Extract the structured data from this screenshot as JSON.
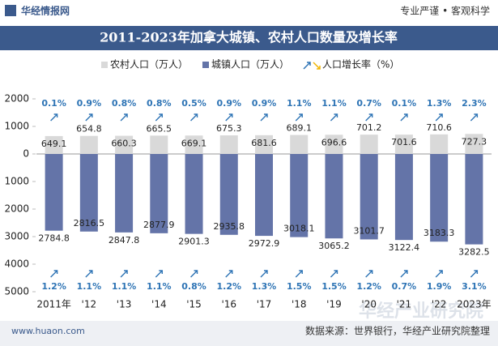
{
  "header": {
    "brand": "华经情报网",
    "slogan": "专业严谨 • 客观科学"
  },
  "footer": {
    "site": "www.huaon.com",
    "source": "数据来源：世界银行，华经产业研究院整理",
    "watermark": "华经产业研究院"
  },
  "chart_data": {
    "type": "bar",
    "title": "2011-2023年加拿大城镇、农村人口数量及增长率",
    "categories": [
      "2011年",
      "'12",
      "'13",
      "'14",
      "'15",
      "'16",
      "'17",
      "'18",
      "'19",
      "'20",
      "'21",
      "'22",
      "2023年"
    ],
    "series": [
      {
        "name": "农村人口（万人）",
        "color": "#d9d9d9",
        "values": [
          649.1,
          654.8,
          660.3,
          665.5,
          669.1,
          675.3,
          681.6,
          689.1,
          696.6,
          701.2,
          701.6,
          710.6,
          727.3
        ],
        "growth": [
          0.1,
          0.9,
          0.8,
          0.8,
          0.5,
          0.9,
          0.9,
          1.1,
          1.1,
          0.7,
          0.1,
          1.3,
          2.3
        ],
        "growth_labels": [
          "0.1%",
          "0.9%",
          "0.8%",
          "0.8%",
          "0.5%",
          "0.9%",
          "0.9%",
          "1.1%",
          "1.1%",
          "0.7%",
          "0.1%",
          "1.3%",
          "2.3%"
        ]
      },
      {
        "name": "城镇人口（万人）",
        "color": "#6474a8",
        "values": [
          -2784.8,
          -2816.5,
          -2847.8,
          -2877.9,
          -2901.3,
          -2935.8,
          -2972.9,
          -3018.1,
          -3065.2,
          -3101.7,
          -3122.4,
          -3183.3,
          -3282.5
        ],
        "value_labels": [
          "2784.8",
          "2816.5",
          "2847.8",
          "2877.9",
          "2901.3",
          "2935.8",
          "2972.9",
          "3018.1",
          "3065.2",
          "3101.7",
          "3122.4",
          "3183.3",
          "3282.5"
        ],
        "growth": [
          1.2,
          1.1,
          1.1,
          1.1,
          0.8,
          1.2,
          1.3,
          1.5,
          1.5,
          1.2,
          0.7,
          1.9,
          3.1
        ],
        "growth_labels": [
          "1.2%",
          "1.1%",
          "1.1%",
          "1.1%",
          "0.8%",
          "1.2%",
          "1.3%",
          "1.5%",
          "1.5%",
          "1.2%",
          "0.7%",
          "1.9%",
          "3.1%"
        ]
      }
    ],
    "growth_name": "人口增长率（%）",
    "growth_color": "#2e74b5",
    "ylim": [
      -5000,
      2000
    ],
    "yticks": [
      2000,
      1000,
      0,
      {
        "value": -1000,
        "label": "1000"
      },
      {
        "value": -2000,
        "label": "2000"
      },
      {
        "value": -3000,
        "label": "3000"
      },
      {
        "value": -4000,
        "label": "4000"
      },
      {
        "value": -5000,
        "label": "5000"
      }
    ]
  }
}
